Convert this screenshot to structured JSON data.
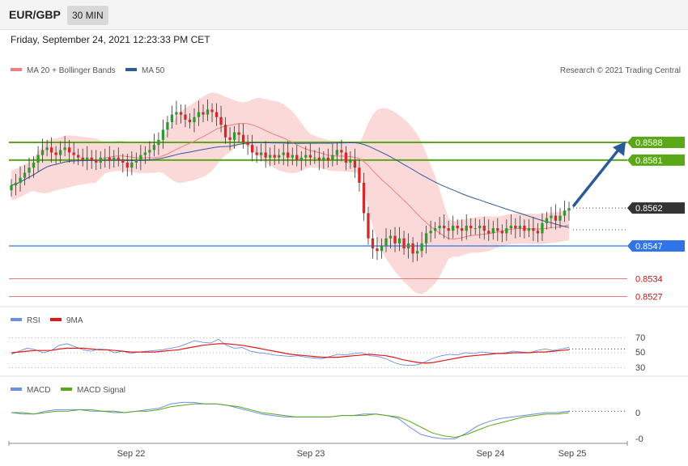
{
  "header": {
    "symbol": "EUR/GBP",
    "timeframe": "30 MIN",
    "datetime": "Friday, September 24, 2021 12:23:33 PM CET"
  },
  "credit": "Research © 2021 Trading Central",
  "colors": {
    "candle_up": "#2e9a2e",
    "candle_down": "#d22a2a",
    "bollinger": "#f9c9c9",
    "ma20": "#f08080",
    "ma50": "#2f5b9a",
    "resistance": "#5aa818",
    "support": "#2f74e8",
    "support2": "#e06a6a",
    "price": "#333333",
    "arrow": "#2a5a9a",
    "rsi": "#6b8ee6",
    "rsi_ma": "#e01818",
    "macd": "#6b8ee6",
    "macd_signal": "#5aa818"
  },
  "chart_data": [
    {
      "type": "candlestick",
      "panel": "price",
      "legend": [
        "MA 20 + Bollinger Bands",
        "MA 50"
      ],
      "x_ticks": [
        "Sep 22",
        "Sep 23",
        "Sep 24",
        "Sep 25"
      ],
      "ylim": [
        0.8522,
        0.8605
      ],
      "levels": [
        {
          "label": "0.8588",
          "value": 0.8588,
          "kind": "resistance"
        },
        {
          "label": "0.8581",
          "value": 0.8581,
          "kind": "resistance"
        },
        {
          "label": "0.8562",
          "value": 0.8562,
          "kind": "price"
        },
        {
          "label": "0.8547",
          "value": 0.8547,
          "kind": "support"
        },
        {
          "label": "0.8534",
          "value": 0.8534,
          "kind": "support2"
        },
        {
          "label": "0.8527",
          "value": 0.8527,
          "kind": "support2"
        }
      ],
      "close": [
        0.8571,
        0.8572,
        0.8574,
        0.8576,
        0.8578,
        0.858,
        0.8583,
        0.8585,
        0.8586,
        0.8584,
        0.8583,
        0.8585,
        0.8586,
        0.8584,
        0.8583,
        0.8582,
        0.8581,
        0.8582,
        0.8581,
        0.858,
        0.8582,
        0.8582,
        0.8581,
        0.8582,
        0.8581,
        0.858,
        0.8578,
        0.858,
        0.8581,
        0.8583,
        0.8584,
        0.8585,
        0.8587,
        0.8589,
        0.8593,
        0.8596,
        0.8599,
        0.86,
        0.8599,
        0.8597,
        0.8596,
        0.8598,
        0.86,
        0.8599,
        0.8601,
        0.86,
        0.8598,
        0.8595,
        0.859,
        0.8589,
        0.8592,
        0.8591,
        0.8588,
        0.8587,
        0.8584,
        0.8583,
        0.8584,
        0.8582,
        0.8583,
        0.8582,
        0.8583,
        0.8584,
        0.8582,
        0.8583,
        0.8581,
        0.8582,
        0.8583,
        0.8582,
        0.8582,
        0.8581,
        0.8582,
        0.8581,
        0.8583,
        0.8585,
        0.8584,
        0.858,
        0.8581,
        0.8578,
        0.8572,
        0.856,
        0.855,
        0.8546,
        0.8545,
        0.8547,
        0.855,
        0.8551,
        0.8548,
        0.855,
        0.8546,
        0.8548,
        0.8544,
        0.8545,
        0.8548,
        0.8552,
        0.8553,
        0.8554,
        0.8555,
        0.8554,
        0.8553,
        0.8555,
        0.8554,
        0.8553,
        0.8555,
        0.8554,
        0.8554,
        0.8555,
        0.8553,
        0.8552,
        0.8554,
        0.8553,
        0.8552,
        0.8554,
        0.8555,
        0.8554,
        0.8555,
        0.8553,
        0.8554,
        0.8553,
        0.8552,
        0.8556,
        0.8558,
        0.8559,
        0.8557,
        0.8559,
        0.8561,
        0.8562
      ]
    },
    {
      "type": "line",
      "panel": "rsi",
      "legend": [
        "RSI",
        "9MA"
      ],
      "y_ticks": [
        "70",
        "50",
        "30"
      ],
      "ylim": [
        20,
        85
      ],
      "series": [
        {
          "name": "RSI",
          "values": [
            48,
            52,
            56,
            54,
            50,
            53,
            60,
            62,
            58,
            54,
            52,
            55,
            54,
            50,
            52,
            49,
            51,
            52,
            53,
            54,
            56,
            58,
            62,
            66,
            64,
            63,
            68,
            60,
            56,
            57,
            52,
            50,
            49,
            47,
            46,
            45,
            46,
            44,
            43,
            42,
            45,
            48,
            47,
            49,
            50,
            46,
            45,
            42,
            37,
            34,
            33,
            34,
            38,
            43,
            46,
            48,
            47,
            50,
            49,
            51,
            50,
            49,
            50,
            52,
            51,
            50,
            53,
            55,
            53,
            55,
            57
          ]
        },
        {
          "name": "9MA",
          "values": [
            50,
            51,
            52,
            53,
            53,
            53,
            55,
            56,
            56,
            56,
            55,
            54,
            54,
            53,
            52,
            51,
            51,
            51,
            51,
            52,
            53,
            54,
            56,
            58,
            60,
            61,
            62,
            62,
            61,
            60,
            58,
            56,
            54,
            52,
            50,
            48,
            47,
            46,
            45,
            44,
            44,
            44,
            45,
            46,
            47,
            48,
            47,
            46,
            44,
            41,
            39,
            37,
            36,
            37,
            39,
            41,
            43,
            45,
            46,
            47,
            48,
            49,
            49,
            50,
            50,
            50,
            51,
            51,
            52,
            53,
            54
          ]
        }
      ]
    },
    {
      "type": "line",
      "panel": "macd",
      "legend": [
        "MACD",
        "MACD Signal"
      ],
      "y_ticks": [
        "0",
        "-0"
      ],
      "series": [
        {
          "name": "MACD",
          "values": [
            0.0,
            -0.0001,
            -0.0001,
            0.0001,
            0.0002,
            0.0002,
            0.0002,
            0.0001,
            0.0001,
            0.0,
            0.0,
            0.0001,
            0.0002,
            0.0003,
            0.0006,
            0.0007,
            0.0007,
            0.0006,
            0.0006,
            0.0005,
            0.0003,
            0.0001,
            -0.0001,
            -0.0002,
            -0.0003,
            -0.0003,
            -0.0003,
            -0.0003,
            -0.0003,
            -0.0002,
            -0.0002,
            -0.0001,
            -0.0001,
            -0.0002,
            -0.0004,
            -0.001,
            -0.0015,
            -0.0017,
            -0.0018,
            -0.0018,
            -0.0014,
            -0.0009,
            -0.0006,
            -0.0004,
            -0.0003,
            -0.0002,
            -0.0001,
            0.0,
            0.0,
            0.0001
          ]
        },
        {
          "name": "MACD Signal",
          "values": [
            0.0,
            0.0,
            -0.0001,
            0.0,
            0.0001,
            0.0001,
            0.0002,
            0.0002,
            0.0001,
            0.0001,
            0.0,
            0.0001,
            0.0001,
            0.0002,
            0.0004,
            0.0005,
            0.0006,
            0.0006,
            0.0006,
            0.0005,
            0.0004,
            0.0002,
            0.0,
            -0.0001,
            -0.0002,
            -0.0003,
            -0.0003,
            -0.0003,
            -0.0003,
            -0.0002,
            -0.0002,
            -0.0002,
            -0.0001,
            -0.0002,
            -0.0003,
            -0.0006,
            -0.001,
            -0.0014,
            -0.0016,
            -0.0017,
            -0.0015,
            -0.0012,
            -0.0009,
            -0.0007,
            -0.0005,
            -0.0003,
            -0.0002,
            -0.0001,
            -0.0001,
            0.0
          ]
        }
      ]
    }
  ]
}
